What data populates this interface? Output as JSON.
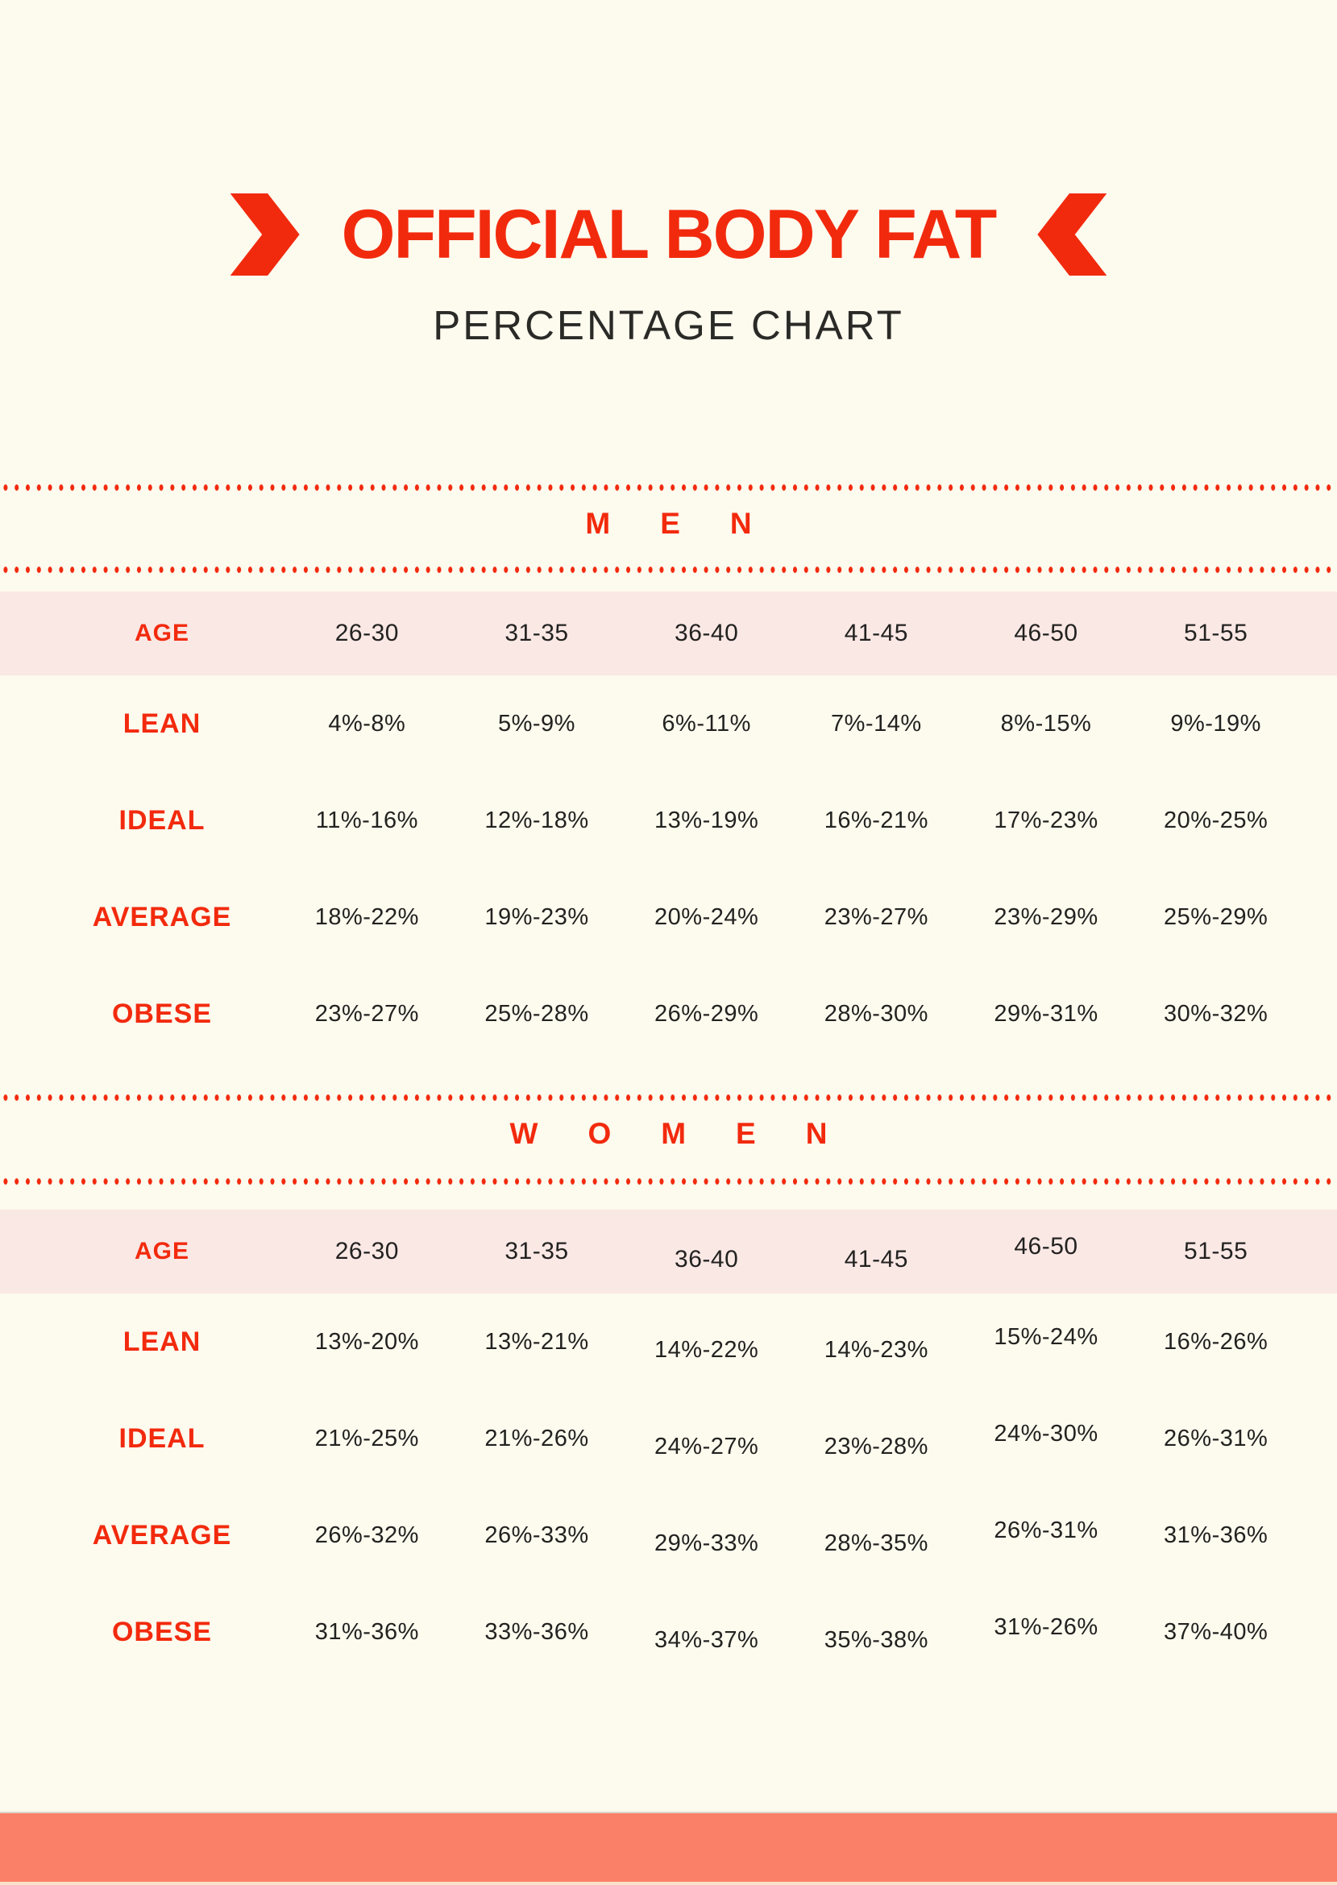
{
  "header": {
    "title": "OFFICIAL BODY FAT",
    "subtitle": "PERCENTAGE CHART"
  },
  "men": {
    "heading": "MEN",
    "age_label": "AGE",
    "ages": [
      "26-30",
      "31-35",
      "36-40",
      "41-45",
      "46-50",
      "51-55"
    ],
    "rows": [
      {
        "label": "LEAN",
        "values": [
          "4%-8%",
          "5%-9%",
          "6%-11%",
          "7%-14%",
          "8%-15%",
          "9%-19%"
        ]
      },
      {
        "label": "IDEAL",
        "values": [
          "11%-16%",
          "12%-18%",
          "13%-19%",
          "16%-21%",
          "17%-23%",
          "20%-25%"
        ]
      },
      {
        "label": "AVERAGE",
        "values": [
          "18%-22%",
          "19%-23%",
          "20%-24%",
          "23%-27%",
          "23%-29%",
          "25%-29%"
        ]
      },
      {
        "label": "OBESE",
        "values": [
          "23%-27%",
          "25%-28%",
          "26%-29%",
          "28%-30%",
          "29%-31%",
          "30%-32%"
        ]
      }
    ]
  },
  "women": {
    "heading": "WOMEN",
    "age_label": "AGE",
    "ages": [
      "26-30",
      "31-35",
      "36-40",
      "41-45",
      "46-50",
      "51-55"
    ],
    "rows": [
      {
        "label": "LEAN",
        "values": [
          "13%-20%",
          "13%-21%",
          "14%-22%",
          "14%-23%",
          "15%-24%",
          "16%-26%"
        ]
      },
      {
        "label": "IDEAL",
        "values": [
          "21%-25%",
          "21%-26%",
          "24%-27%",
          "23%-28%",
          "24%-30%",
          "26%-31%"
        ]
      },
      {
        "label": "AVERAGE",
        "values": [
          "26%-32%",
          "26%-33%",
          "29%-33%",
          "28%-35%",
          "26%-31%",
          "31%-36%"
        ]
      },
      {
        "label": "OBESE",
        "values": [
          "31%-36%",
          "33%-36%",
          "34%-37%",
          "35%-38%",
          "31%-26%",
          "37%-40%"
        ]
      }
    ]
  },
  "colors": {
    "accent_red": "#f22a0d",
    "salmon_band": "#fa8067",
    "age_row_pink": "#fae8e5",
    "background_cream": "#fdfaee",
    "text_dark": "#222220"
  },
  "chart_data": [
    {
      "type": "table",
      "title": "MEN",
      "columns": [
        "AGE",
        "26-30",
        "31-35",
        "36-40",
        "41-45",
        "46-50",
        "51-55"
      ],
      "rows": [
        [
          "LEAN",
          "4%-8%",
          "5%-9%",
          "6%-11%",
          "7%-14%",
          "8%-15%",
          "9%-19%"
        ],
        [
          "IDEAL",
          "11%-16%",
          "12%-18%",
          "13%-19%",
          "16%-21%",
          "17%-23%",
          "20%-25%"
        ],
        [
          "AVERAGE",
          "18%-22%",
          "19%-23%",
          "20%-24%",
          "23%-27%",
          "23%-29%",
          "25%-29%"
        ],
        [
          "OBESE",
          "23%-27%",
          "25%-28%",
          "26%-29%",
          "28%-30%",
          "29%-31%",
          "30%-32%"
        ]
      ]
    },
    {
      "type": "table",
      "title": "WOMEN",
      "columns": [
        "AGE",
        "26-30",
        "31-35",
        "36-40",
        "41-45",
        "46-50",
        "51-55"
      ],
      "rows": [
        [
          "LEAN",
          "13%-20%",
          "13%-21%",
          "14%-22%",
          "14%-23%",
          "15%-24%",
          "16%-26%"
        ],
        [
          "IDEAL",
          "21%-25%",
          "21%-26%",
          "24%-27%",
          "23%-28%",
          "24%-30%",
          "26%-31%"
        ],
        [
          "AVERAGE",
          "26%-32%",
          "26%-33%",
          "29%-33%",
          "28%-35%",
          "26%-31%",
          "31%-36%"
        ],
        [
          "OBESE",
          "31%-36%",
          "33%-36%",
          "34%-37%",
          "35%-38%",
          "31%-26%",
          "37%-40%"
        ]
      ]
    }
  ]
}
